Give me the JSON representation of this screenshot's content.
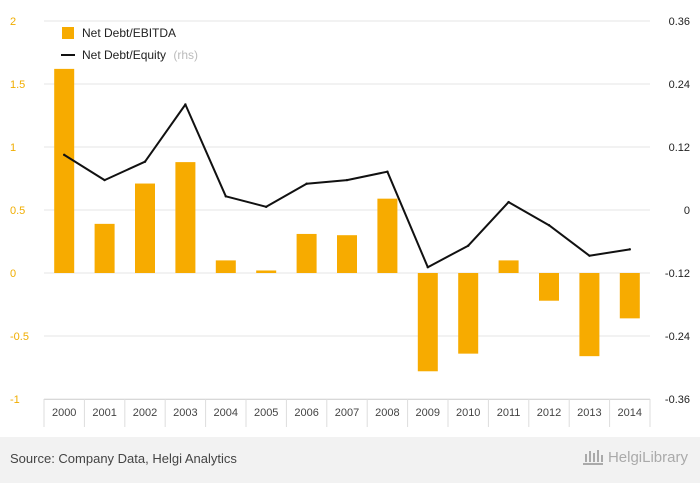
{
  "chart_data": {
    "type": "bar",
    "categories": [
      "2000",
      "2001",
      "2002",
      "2003",
      "2004",
      "2005",
      "2006",
      "2007",
      "2008",
      "2009",
      "2010",
      "2011",
      "2012",
      "2013",
      "2014"
    ],
    "series": [
      {
        "name": "Net Debt/EBITDA",
        "type": "bar",
        "axis": "left",
        "color": "#f7ab00",
        "values": [
          1.62,
          0.39,
          0.71,
          0.88,
          0.1,
          0.02,
          0.31,
          0.3,
          0.59,
          -0.78,
          -0.64,
          0.1,
          -0.22,
          -0.66,
          -0.36
        ]
      },
      {
        "name": "Net Debt/Equity",
        "name_note": "(rhs)",
        "type": "line",
        "axis": "right",
        "color": "#111111",
        "values": [
          0.105,
          0.057,
          0.092,
          0.201,
          0.026,
          0.006,
          0.05,
          0.057,
          0.073,
          -0.109,
          -0.068,
          0.015,
          -0.029,
          -0.087,
          -0.075
        ]
      }
    ],
    "y_left": {
      "ylim": [
        -1,
        2
      ],
      "ticks": [
        -1,
        -0.5,
        0,
        0.5,
        1,
        1.5,
        2
      ],
      "tick_labels": [
        "-1",
        "-0.5",
        "0",
        "0.5",
        "1",
        "1.5",
        "2"
      ]
    },
    "y_right": {
      "ylim": [
        -0.36,
        0.36
      ],
      "ticks": [
        -0.36,
        -0.24,
        -0.12,
        0,
        0.12,
        0.24,
        0.36
      ],
      "tick_labels": [
        "-0.36",
        "-0.24",
        "-0.12",
        "0",
        "0.12",
        "0.24",
        "0.36"
      ]
    },
    "legend_position": "top-left",
    "grid": "horizontal"
  },
  "footer": {
    "source": "Source: Company Data, Helgi Analytics",
    "logo": "HelgiLibrary"
  },
  "colors": {
    "bar": "#f7ab00",
    "line": "#111111",
    "left_axis_labels": "#f0ad00",
    "grid": "#e6e6e6",
    "footer_bg": "#f2f2f2"
  }
}
